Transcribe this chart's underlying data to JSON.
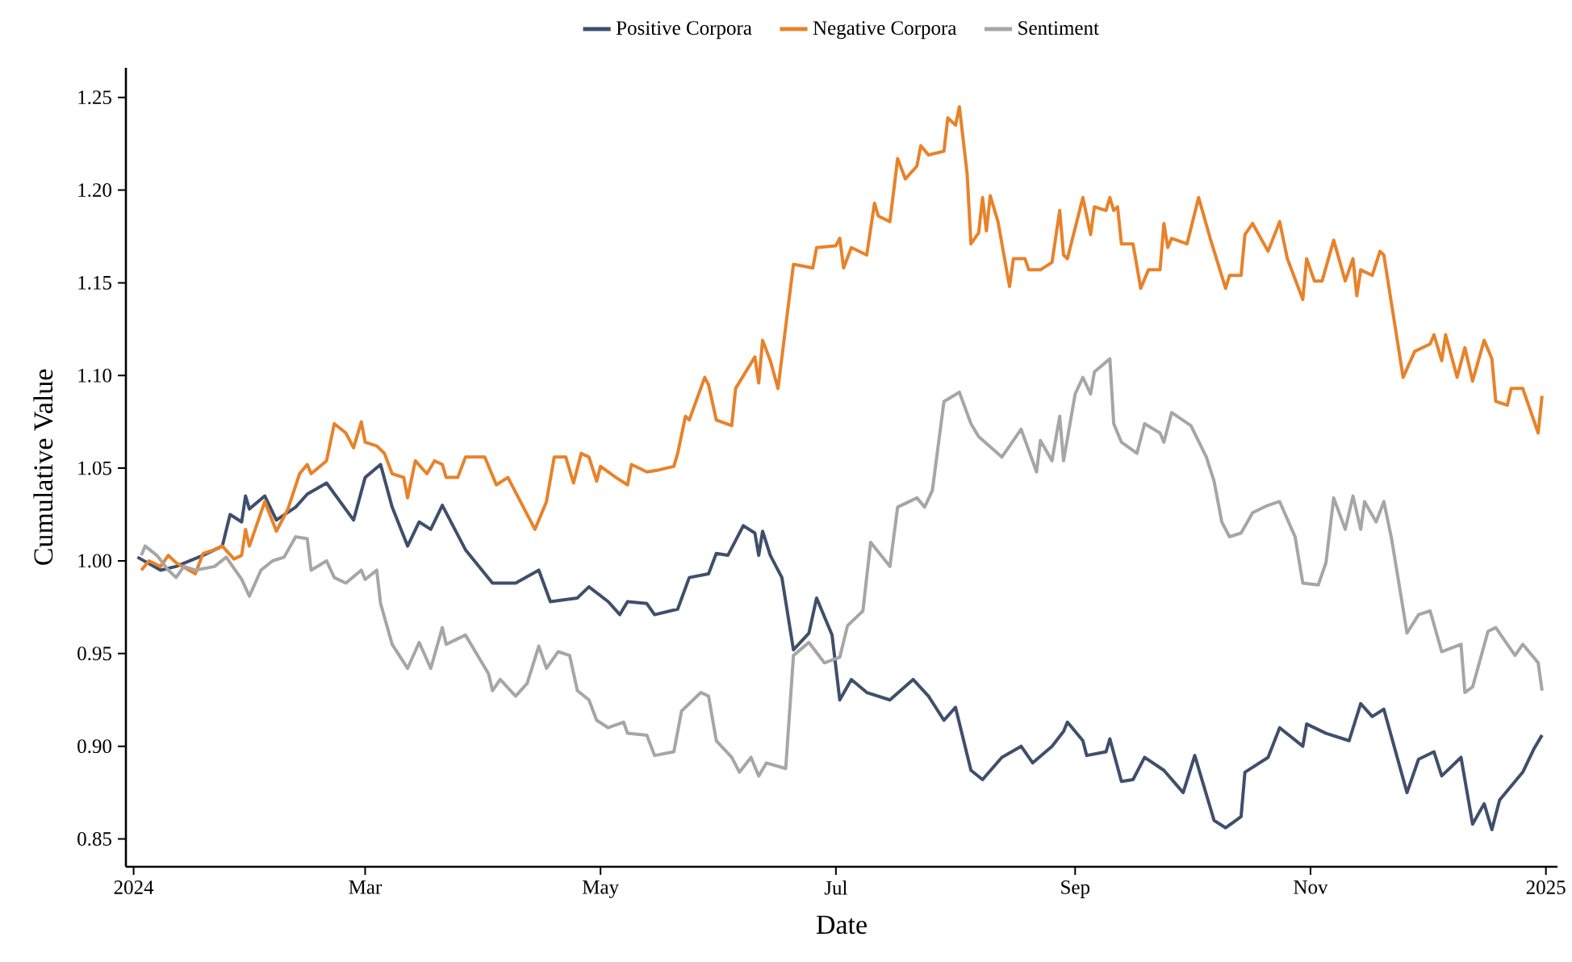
{
  "chart_data": {
    "type": "line",
    "xlabel": "Date",
    "ylabel": "Cumulative Value",
    "xlim": [
      "2023-12-30",
      "2025-01-04"
    ],
    "ylim": [
      0.835,
      1.266
    ],
    "xticks": [
      {
        "value": "2024-01-01",
        "label": "2024"
      },
      {
        "value": "2024-03-01",
        "label": "Mar"
      },
      {
        "value": "2024-05-01",
        "label": "May"
      },
      {
        "value": "2024-07-01",
        "label": "Jul"
      },
      {
        "value": "2024-09-01",
        "label": "Sep"
      },
      {
        "value": "2024-11-01",
        "label": "Nov"
      },
      {
        "value": "2025-01-01",
        "label": "2025"
      }
    ],
    "yticks": [
      0.85,
      {
        "value": 0.9,
        "label": "0.90"
      },
      0.95,
      {
        "value": 1.0,
        "label": "1.00"
      },
      1.05,
      {
        "value": 1.1,
        "label": "1.10"
      },
      1.15,
      {
        "value": 1.2,
        "label": "1.20"
      },
      1.25
    ],
    "legend": "top",
    "series": [
      {
        "name": "Positive Corpora",
        "color": "#3f4f6b",
        "x": [
          "2024-01-02",
          "2024-01-08",
          "2024-01-12",
          "2024-01-19",
          "2024-01-24",
          "2024-01-26",
          "2024-01-29",
          "2024-01-30",
          "2024-01-31",
          "2024-02-04",
          "2024-02-07",
          "2024-02-12",
          "2024-02-15",
          "2024-02-20",
          "2024-02-27",
          "2024-03-01",
          "2024-03-05",
          "2024-03-08",
          "2024-03-12",
          "2024-03-15",
          "2024-03-18",
          "2024-03-21",
          "2024-03-27",
          "2024-04-03",
          "2024-04-09",
          "2024-04-15",
          "2024-04-18",
          "2024-04-25",
          "2024-04-28",
          "2024-05-03",
          "2024-05-06",
          "2024-05-08",
          "2024-05-13",
          "2024-05-15",
          "2024-05-21",
          "2024-05-24",
          "2024-05-29",
          "2024-05-31",
          "2024-06-03",
          "2024-06-07",
          "2024-06-10",
          "2024-06-11",
          "2024-06-12",
          "2024-06-14",
          "2024-06-17",
          "2024-06-20",
          "2024-06-24",
          "2024-06-26",
          "2024-06-30",
          "2024-07-02",
          "2024-07-05",
          "2024-07-09",
          "2024-07-15",
          "2024-07-21",
          "2024-07-25",
          "2024-07-29",
          "2024-08-01",
          "2024-08-05",
          "2024-08-08",
          "2024-08-13",
          "2024-08-18",
          "2024-08-21",
          "2024-08-26",
          "2024-08-29",
          "2024-08-30",
          "2024-09-03",
          "2024-09-04",
          "2024-09-09",
          "2024-09-10",
          "2024-09-13",
          "2024-09-16",
          "2024-09-19",
          "2024-09-24",
          "2024-09-29",
          "2024-10-02",
          "2024-10-07",
          "2024-10-10",
          "2024-10-14",
          "2024-10-15",
          "2024-10-21",
          "2024-10-24",
          "2024-10-30",
          "2024-10-31",
          "2024-11-05",
          "2024-11-11",
          "2024-11-14",
          "2024-11-17",
          "2024-11-20",
          "2024-11-26",
          "2024-11-29",
          "2024-12-03",
          "2024-12-05",
          "2024-12-10",
          "2024-12-13",
          "2024-12-16",
          "2024-12-18",
          "2024-12-20",
          "2024-12-26",
          "2024-12-29",
          "2024-12-31"
        ],
        "values": [
          1.002,
          0.995,
          0.997,
          1.003,
          1.008,
          1.025,
          1.021,
          1.035,
          1.028,
          1.035,
          1.022,
          1.029,
          1.036,
          1.042,
          1.022,
          1.045,
          1.052,
          1.029,
          1.008,
          1.021,
          1.017,
          1.03,
          1.006,
          0.988,
          0.988,
          0.995,
          0.978,
          0.98,
          0.986,
          0.978,
          0.971,
          0.978,
          0.977,
          0.971,
          0.974,
          0.991,
          0.993,
          1.004,
          1.003,
          1.019,
          1.015,
          1.003,
          1.016,
          1.003,
          0.991,
          0.952,
          0.961,
          0.98,
          0.96,
          0.925,
          0.936,
          0.929,
          0.925,
          0.936,
          0.927,
          0.914,
          0.921,
          0.887,
          0.882,
          0.894,
          0.9,
          0.891,
          0.9,
          0.908,
          0.913,
          0.903,
          0.895,
          0.897,
          0.904,
          0.881,
          0.882,
          0.894,
          0.887,
          0.875,
          0.895,
          0.86,
          0.856,
          0.862,
          0.886,
          0.894,
          0.91,
          0.9,
          0.912,
          0.907,
          0.903,
          0.923,
          0.916,
          0.92,
          0.875,
          0.893,
          0.897,
          0.884,
          0.894,
          0.858,
          0.869,
          0.855,
          0.871,
          0.886,
          0.899,
          0.906
        ]
      },
      {
        "name": "Negative Corpora",
        "color": "#e8822a",
        "x": [
          "2024-01-03",
          "2024-01-05",
          "2024-01-08",
          "2024-01-10",
          "2024-01-12",
          "2024-01-17",
          "2024-01-19",
          "2024-01-22",
          "2024-01-24",
          "2024-01-27",
          "2024-01-29",
          "2024-01-30",
          "2024-01-31",
          "2024-02-04",
          "2024-02-07",
          "2024-02-10",
          "2024-02-13",
          "2024-02-15",
          "2024-02-16",
          "2024-02-20",
          "2024-02-22",
          "2024-02-25",
          "2024-02-27",
          "2024-02-29",
          "2024-03-01",
          "2024-03-04",
          "2024-03-06",
          "2024-03-08",
          "2024-03-11",
          "2024-03-12",
          "2024-03-14",
          "2024-03-17",
          "2024-03-19",
          "2024-03-21",
          "2024-03-22",
          "2024-03-25",
          "2024-03-27",
          "2024-04-01",
          "2024-04-04",
          "2024-04-07",
          "2024-04-11",
          "2024-04-14",
          "2024-04-17",
          "2024-04-19",
          "2024-04-22",
          "2024-04-24",
          "2024-04-26",
          "2024-04-28",
          "2024-04-30",
          "2024-05-01",
          "2024-05-05",
          "2024-05-08",
          "2024-05-09",
          "2024-05-13",
          "2024-05-16",
          "2024-05-20",
          "2024-05-21",
          "2024-05-23",
          "2024-05-24",
          "2024-05-28",
          "2024-05-29",
          "2024-05-31",
          "2024-06-04",
          "2024-06-05",
          "2024-06-10",
          "2024-06-11",
          "2024-06-12",
          "2024-06-14",
          "2024-06-16",
          "2024-06-20",
          "2024-06-25",
          "2024-06-26",
          "2024-07-01",
          "2024-07-02",
          "2024-07-03",
          "2024-07-05",
          "2024-07-09",
          "2024-07-11",
          "2024-07-12",
          "2024-07-15",
          "2024-07-17",
          "2024-07-19",
          "2024-07-22",
          "2024-07-23",
          "2024-07-25",
          "2024-07-29",
          "2024-07-30",
          "2024-08-01",
          "2024-08-02",
          "2024-08-04",
          "2024-08-05",
          "2024-08-07",
          "2024-08-08",
          "2024-08-09",
          "2024-08-10",
          "2024-08-12",
          "2024-08-15",
          "2024-08-16",
          "2024-08-19",
          "2024-08-20",
          "2024-08-23",
          "2024-08-26",
          "2024-08-28",
          "2024-08-29",
          "2024-08-30",
          "2024-09-03",
          "2024-09-05",
          "2024-09-06",
          "2024-09-09",
          "2024-09-10",
          "2024-09-11",
          "2024-09-12",
          "2024-09-13",
          "2024-09-16",
          "2024-09-18",
          "2024-09-20",
          "2024-09-23",
          "2024-09-24",
          "2024-09-25",
          "2024-09-26",
          "2024-09-30",
          "2024-10-03",
          "2024-10-06",
          "2024-10-10",
          "2024-10-11",
          "2024-10-14",
          "2024-10-15",
          "2024-10-17",
          "2024-10-21",
          "2024-10-24",
          "2024-10-26",
          "2024-10-30",
          "2024-10-31",
          "2024-11-02",
          "2024-11-04",
          "2024-11-07",
          "2024-11-10",
          "2024-11-12",
          "2024-11-13",
          "2024-11-14",
          "2024-11-17",
          "2024-11-19",
          "2024-11-20",
          "2024-11-25",
          "2024-11-28",
          "2024-12-02",
          "2024-12-03",
          "2024-12-05",
          "2024-12-06",
          "2024-12-09",
          "2024-12-11",
          "2024-12-13",
          "2024-12-16",
          "2024-12-18",
          "2024-12-19",
          "2024-12-22",
          "2024-12-23",
          "2024-12-26",
          "2024-12-30",
          "2024-12-31"
        ],
        "values": [
          0.995,
          1.0,
          0.997,
          1.003,
          0.999,
          0.993,
          1.004,
          1.006,
          1.008,
          1.001,
          1.003,
          1.017,
          1.008,
          1.032,
          1.016,
          1.028,
          1.047,
          1.052,
          1.047,
          1.054,
          1.074,
          1.069,
          1.061,
          1.075,
          1.064,
          1.062,
          1.058,
          1.047,
          1.045,
          1.034,
          1.054,
          1.047,
          1.054,
          1.052,
          1.045,
          1.045,
          1.056,
          1.056,
          1.041,
          1.045,
          1.029,
          1.017,
          1.032,
          1.056,
          1.056,
          1.042,
          1.058,
          1.056,
          1.043,
          1.051,
          1.045,
          1.041,
          1.052,
          1.048,
          1.049,
          1.051,
          1.058,
          1.078,
          1.076,
          1.099,
          1.095,
          1.076,
          1.073,
          1.093,
          1.11,
          1.096,
          1.119,
          1.108,
          1.093,
          1.16,
          1.158,
          1.169,
          1.17,
          1.174,
          1.158,
          1.169,
          1.165,
          1.193,
          1.186,
          1.183,
          1.217,
          1.206,
          1.213,
          1.224,
          1.219,
          1.221,
          1.239,
          1.235,
          1.245,
          1.209,
          1.171,
          1.177,
          1.196,
          1.178,
          1.197,
          1.183,
          1.148,
          1.163,
          1.163,
          1.157,
          1.157,
          1.161,
          1.189,
          1.165,
          1.163,
          1.196,
          1.176,
          1.191,
          1.189,
          1.196,
          1.189,
          1.191,
          1.171,
          1.171,
          1.147,
          1.157,
          1.157,
          1.182,
          1.169,
          1.174,
          1.171,
          1.196,
          1.174,
          1.147,
          1.154,
          1.154,
          1.176,
          1.182,
          1.167,
          1.183,
          1.163,
          1.141,
          1.163,
          1.151,
          1.151,
          1.173,
          1.151,
          1.163,
          1.143,
          1.157,
          1.154,
          1.167,
          1.165,
          1.099,
          1.113,
          1.117,
          1.122,
          1.108,
          1.122,
          1.099,
          1.115,
          1.097,
          1.119,
          1.109,
          1.086,
          1.084,
          1.093,
          1.093,
          1.069,
          1.089
        ]
      },
      {
        "name": "Sentiment",
        "color": "#a6a6a6",
        "x": [
          "2024-01-03",
          "2024-01-04",
          "2024-01-07",
          "2024-01-10",
          "2024-01-12",
          "2024-01-14",
          "2024-01-17",
          "2024-01-22",
          "2024-01-25",
          "2024-01-29",
          "2024-01-31",
          "2024-02-03",
          "2024-02-06",
          "2024-02-09",
          "2024-02-12",
          "2024-02-15",
          "2024-02-16",
          "2024-02-20",
          "2024-02-22",
          "2024-02-25",
          "2024-02-29",
          "2024-03-01",
          "2024-03-04",
          "2024-03-05",
          "2024-03-08",
          "2024-03-12",
          "2024-03-15",
          "2024-03-18",
          "2024-03-21",
          "2024-03-22",
          "2024-03-27",
          "2024-04-02",
          "2024-04-03",
          "2024-04-05",
          "2024-04-09",
          "2024-04-12",
          "2024-04-15",
          "2024-04-17",
          "2024-04-20",
          "2024-04-23",
          "2024-04-25",
          "2024-04-28",
          "2024-04-30",
          "2024-05-03",
          "2024-05-07",
          "2024-05-08",
          "2024-05-13",
          "2024-05-15",
          "2024-05-20",
          "2024-05-22",
          "2024-05-27",
          "2024-05-29",
          "2024-05-31",
          "2024-06-04",
          "2024-06-06",
          "2024-06-09",
          "2024-06-11",
          "2024-06-13",
          "2024-06-18",
          "2024-06-20",
          "2024-06-24",
          "2024-06-28",
          "2024-07-02",
          "2024-07-04",
          "2024-07-08",
          "2024-07-10",
          "2024-07-15",
          "2024-07-17",
          "2024-07-22",
          "2024-07-24",
          "2024-07-26",
          "2024-07-29",
          "2024-08-02",
          "2024-08-05",
          "2024-08-07",
          "2024-08-13",
          "2024-08-18",
          "2024-08-22",
          "2024-08-23",
          "2024-08-26",
          "2024-08-28",
          "2024-08-29",
          "2024-09-01",
          "2024-09-03",
          "2024-09-05",
          "2024-09-06",
          "2024-09-10",
          "2024-09-11",
          "2024-09-13",
          "2024-09-17",
          "2024-09-19",
          "2024-09-23",
          "2024-09-24",
          "2024-09-26",
          "2024-10-01",
          "2024-10-05",
          "2024-10-07",
          "2024-10-09",
          "2024-10-11",
          "2024-10-14",
          "2024-10-17",
          "2024-10-21",
          "2024-10-24",
          "2024-10-28",
          "2024-10-30",
          "2024-11-03",
          "2024-11-05",
          "2024-11-07",
          "2024-11-10",
          "2024-11-12",
          "2024-11-14",
          "2024-11-15",
          "2024-11-18",
          "2024-11-20",
          "2024-11-22",
          "2024-11-25",
          "2024-11-26",
          "2024-11-29",
          "2024-12-02",
          "2024-12-05",
          "2024-12-10",
          "2024-12-11",
          "2024-12-13",
          "2024-12-17",
          "2024-12-19",
          "2024-12-24",
          "2024-12-26",
          "2024-12-30",
          "2024-12-31"
        ],
        "values": [
          1.003,
          1.008,
          1.003,
          0.995,
          0.991,
          0.997,
          0.995,
          0.997,
          1.002,
          0.99,
          0.981,
          0.995,
          1.0,
          1.002,
          1.013,
          1.012,
          0.995,
          1.0,
          0.991,
          0.988,
          0.995,
          0.99,
          0.995,
          0.977,
          0.955,
          0.942,
          0.956,
          0.942,
          0.964,
          0.955,
          0.96,
          0.939,
          0.93,
          0.936,
          0.927,
          0.934,
          0.954,
          0.942,
          0.951,
          0.949,
          0.93,
          0.925,
          0.914,
          0.91,
          0.913,
          0.907,
          0.906,
          0.895,
          0.897,
          0.919,
          0.929,
          0.927,
          0.903,
          0.894,
          0.886,
          0.894,
          0.884,
          0.891,
          0.888,
          0.949,
          0.956,
          0.945,
          0.948,
          0.965,
          0.973,
          1.01,
          0.997,
          1.029,
          1.034,
          1.029,
          1.038,
          1.086,
          1.091,
          1.074,
          1.067,
          1.056,
          1.071,
          1.048,
          1.065,
          1.054,
          1.078,
          1.054,
          1.09,
          1.099,
          1.09,
          1.102,
          1.109,
          1.074,
          1.064,
          1.058,
          1.074,
          1.069,
          1.064,
          1.08,
          1.073,
          1.056,
          1.043,
          1.021,
          1.013,
          1.015,
          1.026,
          1.03,
          1.032,
          1.013,
          0.988,
          0.987,
          0.999,
          1.034,
          1.017,
          1.035,
          1.017,
          1.032,
          1.021,
          1.032,
          1.012,
          0.974,
          0.961,
          0.971,
          0.973,
          0.951,
          0.955,
          0.929,
          0.932,
          0.962,
          0.964,
          0.949,
          0.955,
          0.945,
          0.93
        ]
      }
    ]
  }
}
